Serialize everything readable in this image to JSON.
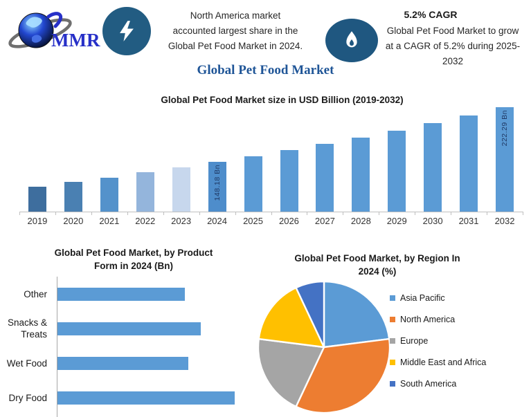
{
  "header": {
    "logo": {
      "text": "MMR",
      "icon": "globe"
    },
    "left_badge_icon": "lightning",
    "headline_lines": [
      "North America market",
      "accounted largest share in the",
      "Global Pet Food Market in 2024."
    ],
    "right_badge_icon": "flame",
    "cagr": {
      "title": "5.2% CAGR",
      "lines": [
        "Global Pet Food Market to grow",
        "at a CAGR of 5.2% during 2025-",
        "2032"
      ]
    }
  },
  "main_title": "Global Pet Food Market",
  "colors": {
    "badge_bg": "#225C82",
    "accent_blue": "#5B9BD5",
    "title_blue": "#1F5597",
    "logo_text_blue": "#2730C8",
    "data_label_navy": "#1F3864",
    "axis_gray": "#BFBFBF"
  },
  "chart_data": [
    {
      "id": "market-size-bar",
      "type": "bar",
      "title": "Global Pet Food Market size in USD Billion (2019-2032)",
      "unit": "USD Billion",
      "categories": [
        "2019",
        "2020",
        "2021",
        "2022",
        "2023",
        "2024",
        "2025",
        "2026",
        "2027",
        "2028",
        "2029",
        "2030",
        "2031",
        "2032"
      ],
      "values": [
        115.0,
        121.0,
        127.3,
        133.9,
        140.9,
        148.18,
        155.9,
        164.0,
        172.5,
        181.5,
        190.9,
        200.9,
        211.3,
        222.29
      ],
      "data_labels": [
        "",
        "",
        "",
        "",
        "",
        "148.18 Bn",
        "",
        "",
        "",
        "",
        "",
        "",
        "",
        "222.29 Bn"
      ],
      "bar_colors": [
        "#3E6E9E",
        "#4A80B2",
        "#5492CB",
        "#94B5DC",
        "#C7D7ED",
        "#4E8DCB",
        "#5B9BD5",
        "#5B9BD5",
        "#5B9BD5",
        "#5B9BD5",
        "#5B9BD5",
        "#5B9BD5",
        "#5B9BD5",
        "#5B9BD5"
      ],
      "ylim": [
        81,
        222.29
      ],
      "grid": false,
      "legend": false
    },
    {
      "id": "product-form-bar",
      "type": "bar",
      "orientation": "horizontal",
      "title": "Global Pet Food Market, by Product Form in 2024 (Bn)",
      "title_lines": [
        "Global Pet Food Market, by Product",
        "Form in 2024 (Bn)"
      ],
      "categories": [
        "Other",
        "Snacks & Treats",
        "Wet Food",
        "Dry Food"
      ],
      "values_relative_pct_of_max": [
        72,
        81,
        74,
        100
      ],
      "xlim": [
        0,
        100
      ],
      "bar_color": "#5B9BD5",
      "grid": false,
      "legend": false
    },
    {
      "id": "region-pie",
      "type": "pie",
      "title": "Global Pet Food Market, by Region In 2024 (%)",
      "title_lines": [
        "Global Pet Food Market, by Region In",
        "2024 (%)"
      ],
      "slices": [
        {
          "label": "Asia Pacific",
          "value": 23,
          "color": "#5B9BD5"
        },
        {
          "label": "North America",
          "value": 34,
          "color": "#ED7D31"
        },
        {
          "label": "Europe",
          "value": 20,
          "color": "#A5A5A5"
        },
        {
          "label": "Middle East and Africa",
          "value": 16,
          "color": "#FFC000"
        },
        {
          "label": "South America",
          "value": 7,
          "color": "#4472C4"
        }
      ],
      "start_angle_deg": 0,
      "direction": "clockwise",
      "legend_position": "right"
    }
  ]
}
